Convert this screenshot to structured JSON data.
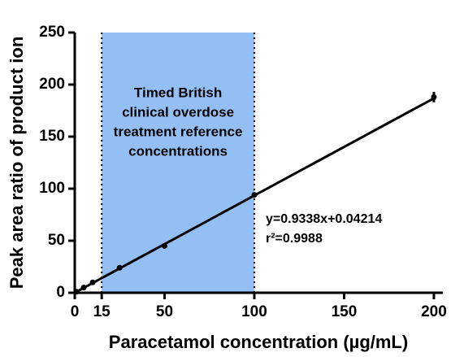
{
  "chart_data": {
    "type": "scatter",
    "xlabel": "Paracetamol concentration (µg/mL)",
    "ylabel": "Peak area ratio of product ion",
    "x": [
      1,
      5,
      10,
      25,
      50,
      100,
      200
    ],
    "values": [
      1,
      5,
      10,
      24,
      45,
      94,
      188
    ],
    "errors": [
      0,
      0,
      0,
      0,
      0,
      0,
      5
    ],
    "color": "#000000",
    "fit": {
      "x": [
        0,
        200
      ],
      "y": [
        0.04214,
        186.8
      ],
      "equation": "y=0.9338x+0.04214",
      "r2": "r²=0.9988"
    },
    "shaded_region": {
      "x": [
        15,
        100
      ],
      "color": "#94bff5",
      "label": [
        "Timed British",
        "clinical overdose",
        "treatment reference",
        "concentrations"
      ]
    },
    "xlim": [
      0,
      205
    ],
    "ylim": [
      0,
      250
    ],
    "xticks": [
      0,
      15,
      50,
      100,
      150,
      200
    ],
    "yticks": [
      0,
      50,
      100,
      150,
      200,
      250
    ]
  }
}
